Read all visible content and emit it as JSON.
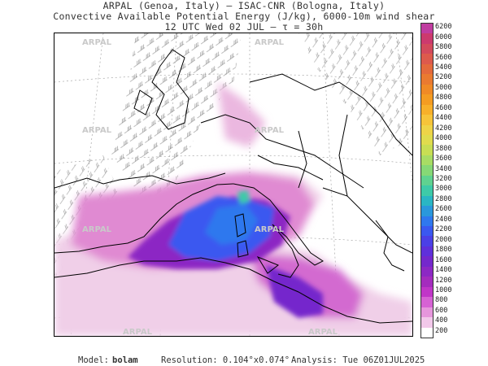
{
  "header": {
    "line1": "ARPAL (Genoa, Italy)  —  ISAC-CNR (Bologna, Italy)",
    "line2": "Convective Available Potential Energy (J/kg), 6000-10m wind shear",
    "line3": "12 UTC Wed 02 JUL  —  τ = 30h"
  },
  "watermark": "ARPAL",
  "colorbar": {
    "labels": [
      "6200",
      "6000",
      "5800",
      "5600",
      "5400",
      "5200",
      "5000",
      "4800",
      "4600",
      "4400",
      "4200",
      "4000",
      "3800",
      "3600",
      "3400",
      "3200",
      "3000",
      "2800",
      "2600",
      "2400",
      "2200",
      "2000",
      "1800",
      "1600",
      "1400",
      "1200",
      "1000",
      "800",
      "600",
      "400",
      "200"
    ],
    "colors": [
      "#c03da0",
      "#cc3a6e",
      "#d34a5c",
      "#dd5a4c",
      "#e46a3c",
      "#ea7a30",
      "#f08a26",
      "#f49c22",
      "#f7b02a",
      "#f6c43a",
      "#eed448",
      "#e0dc4e",
      "#c8de54",
      "#a8dc64",
      "#86d876",
      "#5fd290",
      "#3ecaa8",
      "#2ab6c4",
      "#2a98dc",
      "#2f78ee",
      "#3a58f0",
      "#4b40e6",
      "#5f30da",
      "#7428cc",
      "#8c28c4",
      "#a42cbe",
      "#c036c8",
      "#d662d4",
      "#e696dc",
      "#f2c8ea",
      "#ffffff"
    ]
  },
  "footer": {
    "model_label": "Model:",
    "model_value": "bolam",
    "resolution": "Resolution: 0.104°x0.074°",
    "analysis": "Analysis: Tue 06Z01JUL2025"
  }
}
